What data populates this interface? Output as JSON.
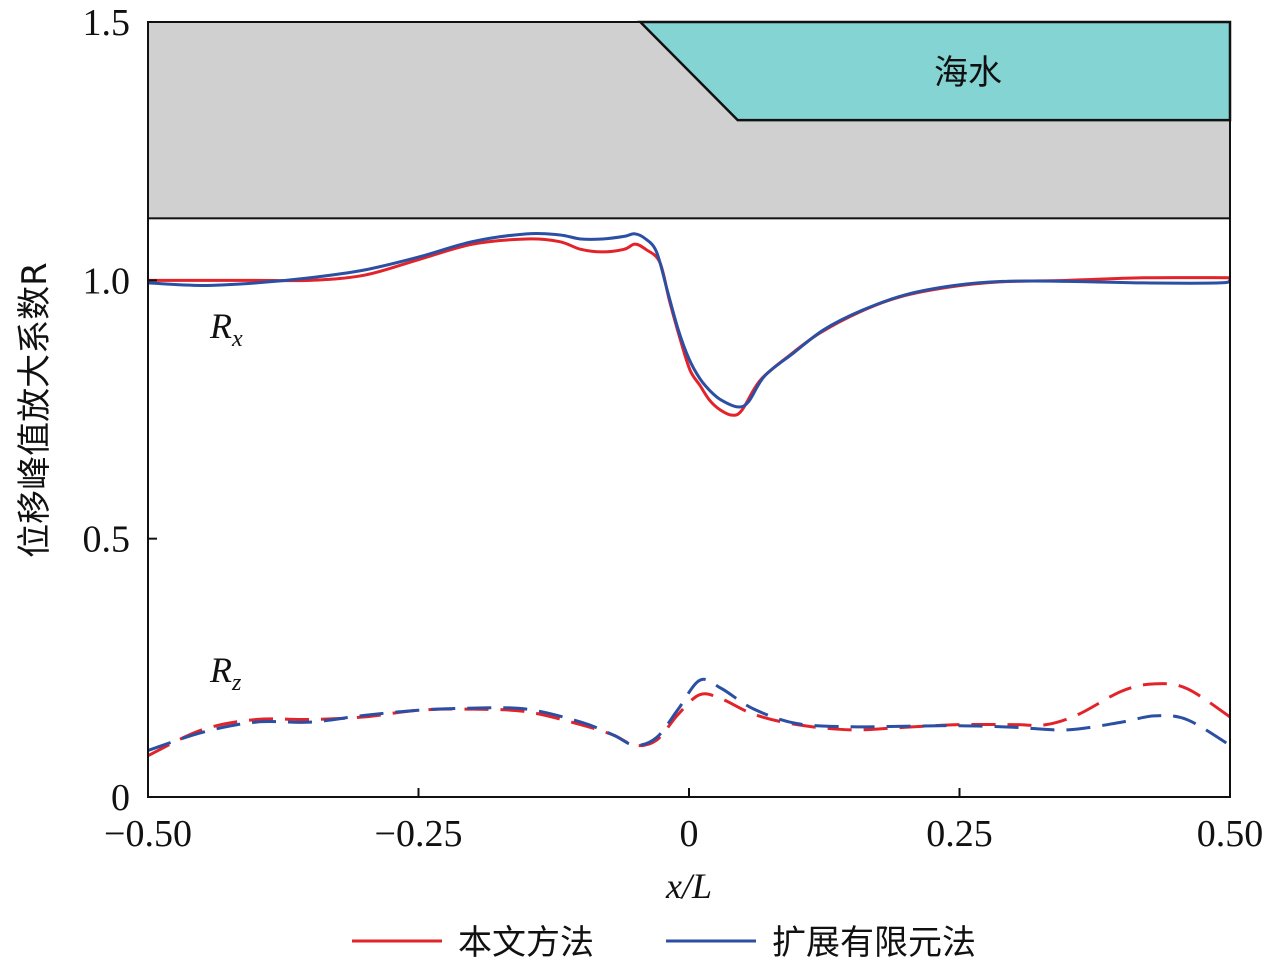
{
  "chart_data": {
    "type": "line",
    "xlabel": "x/L",
    "ylabel": "位移峰值放大系数R",
    "xlim": [
      -0.5,
      0.5
    ],
    "ylim": [
      0,
      1.5
    ],
    "xticks": [
      "−0.50",
      "−0.25",
      "0",
      "0.25",
      "0.50"
    ],
    "xtick_values": [
      -0.5,
      -0.25,
      0,
      0.25,
      0.5
    ],
    "yticks": [
      "0",
      "0.5",
      "1.0",
      "1.5"
    ],
    "ytick_values": [
      0,
      0.5,
      1.0,
      1.5
    ],
    "annotations": {
      "sea": "海水",
      "rx": "R",
      "rx_sub": "x",
      "rz": "R",
      "rz_sub": "z"
    },
    "terrain": {
      "ground_top": 1.12,
      "sea_slope_start_x": -0.045,
      "sea_slope_end_x": 0.045,
      "sea_bottom": 1.31,
      "ground_color": "#d0d0d0",
      "sea_color": "#84d4d4"
    },
    "legend": [
      {
        "label": "本文方法",
        "color": "#e2232a"
      },
      {
        "label": "扩展有限元法",
        "color": "#2b4fa3"
      }
    ],
    "legend_placement": "bottom",
    "series": [
      {
        "name": "Rx 本文方法",
        "style": "solid",
        "color": "#e2232a",
        "x": [
          -0.5,
          -0.45,
          -0.4,
          -0.35,
          -0.3,
          -0.25,
          -0.2,
          -0.15,
          -0.12,
          -0.1,
          -0.08,
          -0.06,
          -0.05,
          -0.04,
          -0.027,
          -0.018,
          -0.008,
          0.001,
          0.01,
          0.019,
          0.029,
          0.04,
          0.049,
          0.066,
          0.093,
          0.121,
          0.158,
          0.195,
          0.241,
          0.287,
          0.35,
          0.42,
          0.5
        ],
        "y": [
          1.0,
          1.0,
          1.0,
          1.0,
          1.01,
          1.04,
          1.07,
          1.08,
          1.075,
          1.06,
          1.055,
          1.06,
          1.07,
          1.06,
          1.035,
          0.96,
          0.885,
          0.826,
          0.797,
          0.768,
          0.749,
          0.739,
          0.749,
          0.807,
          0.855,
          0.898,
          0.939,
          0.968,
          0.987,
          0.997,
          1.0,
          1.005,
          1.005
        ]
      },
      {
        "name": "Rx 扩展有限元法",
        "style": "solid",
        "color": "#2b4fa3",
        "x": [
          -0.5,
          -0.45,
          -0.4,
          -0.35,
          -0.3,
          -0.25,
          -0.2,
          -0.15,
          -0.12,
          -0.1,
          -0.08,
          -0.06,
          -0.05,
          -0.04,
          -0.03,
          -0.02,
          -0.01,
          0.0,
          0.01,
          0.02,
          0.03,
          0.045,
          0.055,
          0.07,
          0.097,
          0.125,
          0.16,
          0.2,
          0.245,
          0.29,
          0.35,
          0.42,
          0.49,
          0.5
        ],
        "y": [
          0.995,
          0.99,
          0.995,
          1.005,
          1.02,
          1.045,
          1.075,
          1.09,
          1.088,
          1.08,
          1.08,
          1.085,
          1.09,
          1.08,
          1.055,
          0.98,
          0.905,
          0.848,
          0.81,
          0.785,
          0.768,
          0.755,
          0.765,
          0.815,
          0.86,
          0.905,
          0.942,
          0.972,
          0.99,
          0.998,
          0.998,
          0.995,
          0.995,
          1.0
        ]
      },
      {
        "name": "Rz 本文方法",
        "style": "dashed",
        "color": "#e2232a",
        "x": [
          -0.5,
          -0.45,
          -0.4,
          -0.35,
          -0.3,
          -0.25,
          -0.2,
          -0.15,
          -0.1,
          -0.07,
          -0.05,
          -0.03,
          -0.01,
          0.01,
          0.03,
          0.06,
          0.1,
          0.15,
          0.2,
          0.25,
          0.3,
          0.33,
          0.36,
          0.4,
          0.43,
          0.46,
          0.5
        ],
        "y": [
          0.08,
          0.13,
          0.15,
          0.15,
          0.155,
          0.168,
          0.17,
          0.165,
          0.14,
          0.12,
          0.1,
          0.11,
          0.16,
          0.198,
          0.19,
          0.16,
          0.14,
          0.13,
          0.135,
          0.14,
          0.14,
          0.14,
          0.16,
          0.205,
          0.219,
          0.21,
          0.155
        ]
      },
      {
        "name": "Rz 扩展有限元法",
        "style": "dashed",
        "color": "#2b4fa3",
        "x": [
          -0.5,
          -0.45,
          -0.4,
          -0.35,
          -0.3,
          -0.25,
          -0.2,
          -0.15,
          -0.1,
          -0.07,
          -0.05,
          -0.03,
          -0.01,
          0.01,
          0.03,
          0.06,
          0.1,
          0.15,
          0.2,
          0.25,
          0.3,
          0.35,
          0.4,
          0.43,
          0.46,
          0.5
        ],
        "y": [
          0.09,
          0.125,
          0.145,
          0.145,
          0.158,
          0.168,
          0.172,
          0.17,
          0.145,
          0.12,
          0.1,
          0.115,
          0.17,
          0.226,
          0.21,
          0.17,
          0.142,
          0.136,
          0.137,
          0.138,
          0.135,
          0.13,
          0.145,
          0.157,
          0.15,
          0.1
        ]
      }
    ]
  }
}
